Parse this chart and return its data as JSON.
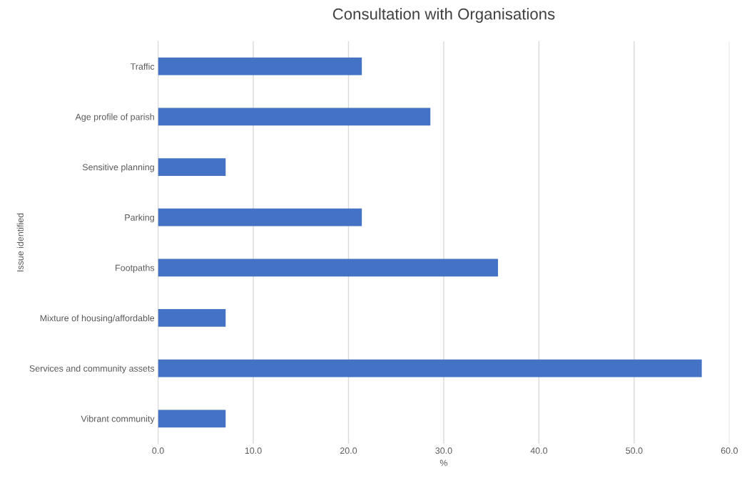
{
  "chart_data": {
    "type": "bar",
    "orientation": "horizontal",
    "title": "Consultation with Organisations",
    "xlabel": "%",
    "ylabel": "Issue identified",
    "categories": [
      "Traffic",
      "Age profile of parish",
      "Sensitive planning",
      "Parking",
      "Footpaths",
      "Mixture of housing/affordable",
      "Services and community assets",
      "Vibrant community"
    ],
    "values": [
      21.4,
      28.6,
      7.1,
      21.4,
      35.7,
      7.1,
      57.1,
      7.1
    ],
    "color": "#4472c4",
    "xlim": [
      0,
      60
    ],
    "xticks": [
      {
        "value": 0,
        "label": "0.0"
      },
      {
        "value": 10,
        "label": "10.0"
      },
      {
        "value": 20,
        "label": "20.0"
      },
      {
        "value": 30,
        "label": "30.0"
      },
      {
        "value": 40,
        "label": "40.0"
      },
      {
        "value": 50,
        "label": "50.0"
      },
      {
        "value": 60,
        "label": "60.0"
      }
    ],
    "grid": "x"
  }
}
